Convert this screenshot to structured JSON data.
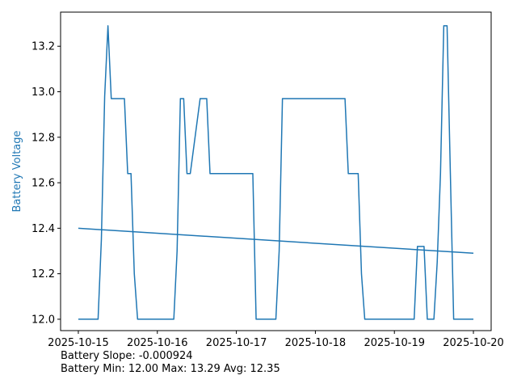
{
  "colors": {
    "series": "#1f77b4",
    "axis": "#000000",
    "background": "#ffffff"
  },
  "chart_data": {
    "type": "line",
    "title": "",
    "xlabel": "",
    "ylabel": "Battery Voltage",
    "xlim": [
      "2025-10-15",
      "2025-10-20"
    ],
    "ylim": [
      11.95,
      13.35
    ],
    "x_ticks": [
      "2025-10-15",
      "2025-10-16",
      "2025-10-17",
      "2025-10-18",
      "2025-10-19",
      "2025-10-20"
    ],
    "y_ticks": [
      "12.0",
      "12.2",
      "12.4",
      "12.6",
      "12.8",
      "13.0",
      "13.2"
    ],
    "grid": false,
    "series": [
      {
        "name": "",
        "x": [
          "2025-10-15 00:00",
          "2025-10-15 06:00",
          "2025-10-15 07:00",
          "2025-10-15 08:00",
          "2025-10-15 09:00",
          "2025-10-15 10:00",
          "2025-10-15 14:00",
          "2025-10-15 15:00",
          "2025-10-15 16:00",
          "2025-10-15 17:00",
          "2025-10-15 18:00",
          "2025-10-16 05:00",
          "2025-10-16 06:00",
          "2025-10-16 07:00",
          "2025-10-16 08:00",
          "2025-10-16 09:00",
          "2025-10-16 10:00",
          "2025-10-16 13:00",
          "2025-10-16 14:00",
          "2025-10-16 15:00",
          "2025-10-16 16:00",
          "2025-10-17 05:00",
          "2025-10-17 06:00",
          "2025-10-17 07:00",
          "2025-10-17 08:00",
          "2025-10-17 12:00",
          "2025-10-17 13:00",
          "2025-10-17 14:00",
          "2025-10-17 15:00",
          "2025-10-18 06:00",
          "2025-10-18 07:00",
          "2025-10-18 08:00",
          "2025-10-18 09:00",
          "2025-10-18 10:00",
          "2025-10-18 13:00",
          "2025-10-18 14:00",
          "2025-10-18 15:00",
          "2025-10-18 16:00",
          "2025-10-19 06:00",
          "2025-10-19 07:00",
          "2025-10-19 09:00",
          "2025-10-19 10:00",
          "2025-10-19 12:00",
          "2025-10-19 13:00",
          "2025-10-19 14:00",
          "2025-10-19 15:00",
          "2025-10-19 16:00",
          "2025-10-19 17:00",
          "2025-10-19 18:00",
          "2025-10-20 00:00"
        ],
        "y": [
          12.0,
          12.0,
          12.35,
          12.98,
          13.29,
          12.97,
          12.97,
          12.64,
          12.64,
          12.2,
          12.0,
          12.0,
          12.3,
          12.97,
          12.97,
          12.64,
          12.64,
          12.97,
          12.97,
          12.97,
          12.64,
          12.64,
          12.0,
          12.0,
          12.0,
          12.0,
          12.3,
          12.97,
          12.97,
          12.97,
          12.97,
          12.97,
          12.97,
          12.64,
          12.64,
          12.2,
          12.0,
          12.0,
          12.0,
          12.32,
          12.32,
          12.0,
          12.0,
          12.25,
          12.64,
          13.29,
          13.29,
          12.64,
          12.0,
          12.0
        ]
      },
      {
        "name": "",
        "style": "trend",
        "x": [
          "2025-10-15 00:00",
          "2025-10-20 00:00"
        ],
        "y": [
          12.4,
          12.29
        ]
      }
    ]
  },
  "stats": {
    "slope_text": "Battery Slope: -0.000924",
    "range_text": "Battery Min: 12.00 Max: 13.29 Avg: 12.35"
  }
}
